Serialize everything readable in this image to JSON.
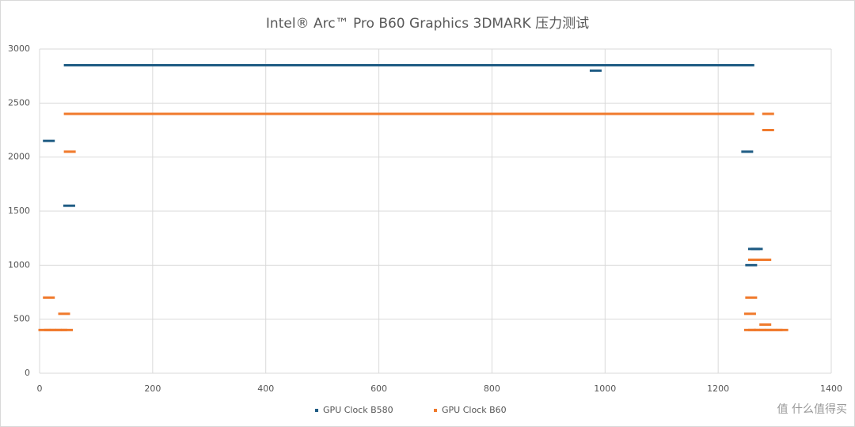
{
  "chart_data": {
    "type": "scatter",
    "title": "Intel® Arc™ Pro B60 Graphics  3DMARK 压力测试",
    "watermark": "值 什么值得买",
    "xlim": [
      0,
      1400
    ],
    "xticks": [
      0,
      200,
      400,
      600,
      800,
      1000,
      1200,
      1400
    ],
    "ylim": [
      0,
      3000
    ],
    "yticks": [
      0,
      500,
      1000,
      1500,
      2000,
      2500,
      3000
    ],
    "grid": true,
    "legend": "bottom",
    "series": [
      {
        "name": "GPU Clock B580",
        "color": "#1f5c84",
        "x": [
          8,
          44,
          45,
          65,
          85,
          105,
          125,
          145,
          165,
          185,
          205,
          225,
          245,
          265,
          285,
          305,
          325,
          345,
          365,
          385,
          405,
          425,
          445,
          465,
          485,
          505,
          525,
          545,
          565,
          585,
          605,
          625,
          645,
          665,
          685,
          705,
          725,
          745,
          765,
          785,
          805,
          825,
          845,
          865,
          885,
          905,
          925,
          945,
          965,
          985,
          1005,
          1025,
          1045,
          1065,
          1085,
          1105,
          1125,
          1145,
          1165,
          1185,
          1205,
          1225,
          1245,
          975,
          1243,
          1255,
          1260,
          1250
        ],
        "values": [
          2150,
          1550,
          2850,
          2850,
          2850,
          2850,
          2850,
          2850,
          2850,
          2850,
          2850,
          2850,
          2850,
          2850,
          2850,
          2850,
          2850,
          2850,
          2850,
          2850,
          2850,
          2850,
          2850,
          2850,
          2850,
          2850,
          2850,
          2850,
          2850,
          2850,
          2850,
          2850,
          2850,
          2850,
          2850,
          2850,
          2850,
          2850,
          2850,
          2850,
          2850,
          2850,
          2850,
          2850,
          2850,
          2850,
          2850,
          2850,
          2850,
          2850,
          2850,
          2850,
          2850,
          2850,
          2850,
          2850,
          2850,
          2850,
          2850,
          2850,
          2850,
          2850,
          2850,
          2800,
          2050,
          1150,
          1150,
          1000
        ]
      },
      {
        "name": "GPU Clock B60",
        "color": "#f07a2c",
        "x": [
          0,
          10,
          20,
          30,
          40,
          8,
          35,
          45,
          45,
          65,
          85,
          105,
          125,
          145,
          165,
          185,
          205,
          225,
          245,
          265,
          285,
          305,
          325,
          345,
          365,
          385,
          405,
          425,
          445,
          465,
          485,
          505,
          525,
          545,
          565,
          585,
          605,
          625,
          645,
          665,
          685,
          705,
          725,
          745,
          765,
          785,
          805,
          825,
          845,
          865,
          885,
          905,
          925,
          945,
          965,
          985,
          1005,
          1025,
          1045,
          1065,
          1085,
          1105,
          1125,
          1145,
          1165,
          1185,
          1205,
          1225,
          1245,
          1248,
          1250,
          1248,
          1255,
          1260,
          1275,
          1280,
          1280,
          1275,
          1255,
          1265,
          1275,
          1285,
          1295,
          1305
        ],
        "values": [
          400,
          400,
          400,
          400,
          400,
          700,
          550,
          2050,
          2400,
          2400,
          2400,
          2400,
          2400,
          2400,
          2400,
          2400,
          2400,
          2400,
          2400,
          2400,
          2400,
          2400,
          2400,
          2400,
          2400,
          2400,
          2400,
          2400,
          2400,
          2400,
          2400,
          2400,
          2400,
          2400,
          2400,
          2400,
          2400,
          2400,
          2400,
          2400,
          2400,
          2400,
          2400,
          2400,
          2400,
          2400,
          2400,
          2400,
          2400,
          2400,
          2400,
          2400,
          2400,
          2400,
          2400,
          2400,
          2400,
          2400,
          2400,
          2400,
          2400,
          2400,
          2400,
          2400,
          2400,
          2400,
          2400,
          2400,
          2400,
          400,
          700,
          550,
          1050,
          1050,
          1050,
          2400,
          2250,
          450,
          400,
          400,
          400,
          400,
          400,
          400
        ]
      }
    ]
  }
}
